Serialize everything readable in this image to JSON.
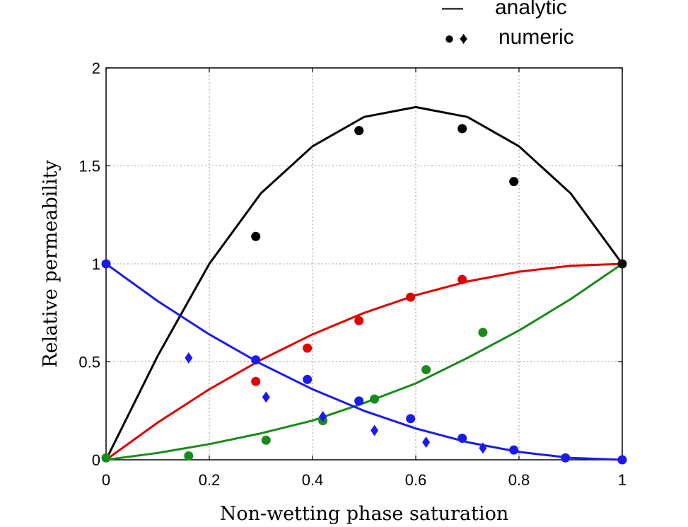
{
  "chart_data": {
    "type": "line",
    "xlabel": "Non-wetting phase saturation",
    "ylabel": "Relative permeability",
    "xlim": [
      0,
      1
    ],
    "ylim": [
      0,
      2
    ],
    "xticks": [
      "0",
      "0.2",
      "0.4",
      "0.6",
      "0.8",
      "1"
    ],
    "yticks": [
      "0",
      "0.5",
      "1",
      "1.5",
      "2"
    ],
    "grid": true,
    "legend": {
      "placement": "top-right",
      "entries": [
        {
          "symbol": "—",
          "label": "analytic"
        },
        {
          "symbol": "● ♦",
          "label": "numeric"
        }
      ]
    },
    "series": [
      {
        "color": "#000000",
        "line": {
          "x": [
            0,
            0.1,
            0.2,
            0.3,
            0.4,
            0.5,
            0.6,
            0.7,
            0.8,
            0.9,
            1.0
          ],
          "y": [
            0,
            0.53,
            1.0,
            1.36,
            1.6,
            1.75,
            1.8,
            1.75,
            1.6,
            1.36,
            1.0
          ]
        },
        "points": {
          "marker": "circle",
          "x": [
            0.29,
            0.49,
            0.69,
            0.79,
            1.0
          ],
          "y": [
            1.14,
            1.68,
            1.69,
            1.42,
            1.0
          ]
        }
      },
      {
        "color": "#e00000",
        "line": {
          "x": [
            0,
            0.1,
            0.2,
            0.3,
            0.4,
            0.5,
            0.6,
            0.7,
            0.8,
            0.9,
            1.0
          ],
          "y": [
            0,
            0.19,
            0.36,
            0.51,
            0.64,
            0.75,
            0.84,
            0.91,
            0.96,
            0.99,
            1.0
          ]
        },
        "points": {
          "marker": "circle",
          "x": [
            0.29,
            0.39,
            0.49,
            0.59,
            0.69
          ],
          "y": [
            0.4,
            0.57,
            0.71,
            0.83,
            0.92
          ]
        }
      },
      {
        "color": "#1a8a1a",
        "line": {
          "x": [
            0,
            0.1,
            0.2,
            0.3,
            0.4,
            0.5,
            0.6,
            0.7,
            0.8,
            0.9,
            1.0
          ],
          "y": [
            0,
            0.035,
            0.08,
            0.135,
            0.2,
            0.29,
            0.39,
            0.52,
            0.66,
            0.82,
            1.0
          ]
        },
        "points": {
          "marker": "circle",
          "x": [
            0,
            0.16,
            0.31,
            0.42,
            0.52,
            0.62,
            0.73
          ],
          "y": [
            0.01,
            0.02,
            0.1,
            0.2,
            0.31,
            0.46,
            0.65
          ]
        }
      },
      {
        "color": "#1a1aee",
        "line": {
          "x": [
            0,
            0.1,
            0.2,
            0.3,
            0.4,
            0.5,
            0.6,
            0.7,
            0.8,
            0.9,
            1.0
          ],
          "y": [
            1.0,
            0.81,
            0.64,
            0.49,
            0.36,
            0.25,
            0.16,
            0.09,
            0.04,
            0.01,
            0
          ]
        },
        "points": {
          "marker": "circle",
          "x": [
            0,
            0.29,
            0.39,
            0.49,
            0.59,
            0.69,
            0.79,
            0.89,
            1.0
          ],
          "y": [
            1.0,
            0.51,
            0.41,
            0.3,
            0.21,
            0.11,
            0.05,
            0.01,
            0.0
          ]
        },
        "diamonds": {
          "marker": "diamond",
          "x": [
            0.16,
            0.31,
            0.42,
            0.52,
            0.62,
            0.73
          ],
          "y": [
            0.52,
            0.32,
            0.22,
            0.15,
            0.09,
            0.06
          ]
        }
      }
    ]
  }
}
